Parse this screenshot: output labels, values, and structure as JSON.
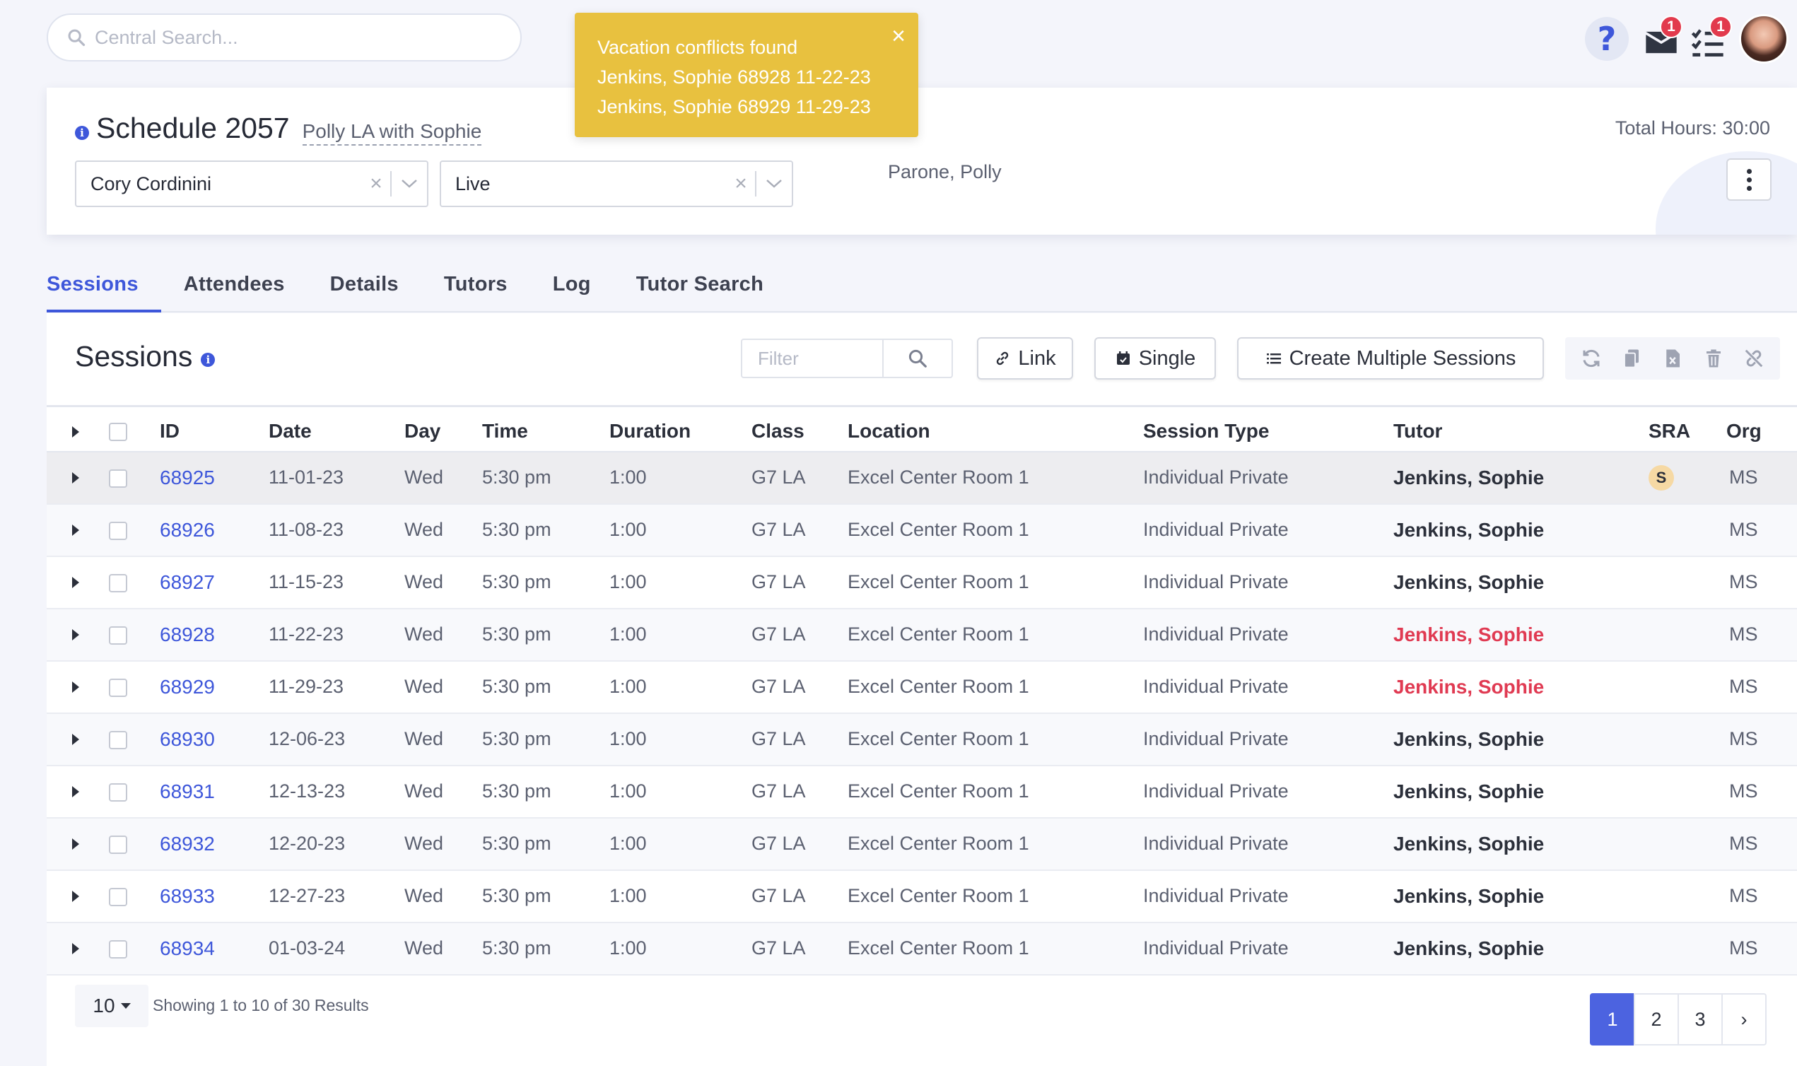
{
  "search": {
    "placeholder": "Central Search..."
  },
  "topbar": {
    "mail_badge": "1",
    "tasks_badge": "1"
  },
  "toast": {
    "title": "Vacation conflicts found",
    "lines": [
      "Jenkins, Sophie 68928 11-22-23",
      "Jenkins, Sophie 68929 11-29-23"
    ],
    "close": "×"
  },
  "schedule": {
    "title": "Schedule 2057",
    "subtitle": "Polly LA with Sophie",
    "staff_select": "Cory Cordinini",
    "status_select": "Live",
    "owner": "Parone, Polly",
    "total_hours": "Total Hours: 30:00"
  },
  "tabs": [
    "Sessions",
    "Attendees",
    "Details",
    "Tutors",
    "Log",
    "Tutor Search"
  ],
  "sessions": {
    "title": "Sessions",
    "filter_placeholder": "Filter",
    "link_label": "Link",
    "single_label": "Single",
    "create_multiple_label": "Create Multiple Sessions",
    "columns": [
      "ID",
      "Date",
      "Day",
      "Time",
      "Duration",
      "Class",
      "Location",
      "Session Type",
      "Tutor",
      "SRA",
      "Org"
    ],
    "rows": [
      {
        "id": "68925",
        "date": "11-01-23",
        "day": "Wed",
        "time": "5:30 pm",
        "duration": "1:00",
        "class": "G7 LA",
        "location": "Excel Center Room 1",
        "type": "Individual Private",
        "tutor": "Jenkins, Sophie",
        "sra": "S",
        "org": "MS"
      },
      {
        "id": "68926",
        "date": "11-08-23",
        "day": "Wed",
        "time": "5:30 pm",
        "duration": "1:00",
        "class": "G7 LA",
        "location": "Excel Center Room 1",
        "type": "Individual Private",
        "tutor": "Jenkins, Sophie",
        "sra": "",
        "org": "MS"
      },
      {
        "id": "68927",
        "date": "11-15-23",
        "day": "Wed",
        "time": "5:30 pm",
        "duration": "1:00",
        "class": "G7 LA",
        "location": "Excel Center Room 1",
        "type": "Individual Private",
        "tutor": "Jenkins, Sophie",
        "sra": "",
        "org": "MS"
      },
      {
        "id": "68928",
        "date": "11-22-23",
        "day": "Wed",
        "time": "5:30 pm",
        "duration": "1:00",
        "class": "G7 LA",
        "location": "Excel Center Room 1",
        "type": "Individual Private",
        "tutor": "Jenkins, Sophie",
        "sra": "",
        "org": "MS"
      },
      {
        "id": "68929",
        "date": "11-29-23",
        "day": "Wed",
        "time": "5:30 pm",
        "duration": "1:00",
        "class": "G7 LA",
        "location": "Excel Center Room 1",
        "type": "Individual Private",
        "tutor": "Jenkins, Sophie",
        "sra": "",
        "org": "MS"
      },
      {
        "id": "68930",
        "date": "12-06-23",
        "day": "Wed",
        "time": "5:30 pm",
        "duration": "1:00",
        "class": "G7 LA",
        "location": "Excel Center Room 1",
        "type": "Individual Private",
        "tutor": "Jenkins, Sophie",
        "sra": "",
        "org": "MS"
      },
      {
        "id": "68931",
        "date": "12-13-23",
        "day": "Wed",
        "time": "5:30 pm",
        "duration": "1:00",
        "class": "G7 LA",
        "location": "Excel Center Room 1",
        "type": "Individual Private",
        "tutor": "Jenkins, Sophie",
        "sra": "",
        "org": "MS"
      },
      {
        "id": "68932",
        "date": "12-20-23",
        "day": "Wed",
        "time": "5:30 pm",
        "duration": "1:00",
        "class": "G7 LA",
        "location": "Excel Center Room 1",
        "type": "Individual Private",
        "tutor": "Jenkins, Sophie",
        "sra": "",
        "org": "MS"
      },
      {
        "id": "68933",
        "date": "12-27-23",
        "day": "Wed",
        "time": "5:30 pm",
        "duration": "1:00",
        "class": "G7 LA",
        "location": "Excel Center Room 1",
        "type": "Individual Private",
        "tutor": "Jenkins, Sophie",
        "sra": "",
        "org": "MS"
      },
      {
        "id": "68934",
        "date": "01-03-24",
        "day": "Wed",
        "time": "5:30 pm",
        "duration": "1:00",
        "class": "G7 LA",
        "location": "Excel Center Room 1",
        "type": "Individual Private",
        "tutor": "Jenkins, Sophie",
        "sra": "",
        "org": "MS"
      }
    ],
    "conflict_ids": [
      "68928",
      "68929"
    ],
    "page_size": "10",
    "showing": "Showing 1 to 10 of 30 Results",
    "pages": [
      "1",
      "2",
      "3"
    ],
    "next": "›"
  },
  "colors": {
    "accent": "#3e57da",
    "toast": "#e8c13f",
    "conflict": "#e03a52",
    "badge": "#e23a4d"
  }
}
